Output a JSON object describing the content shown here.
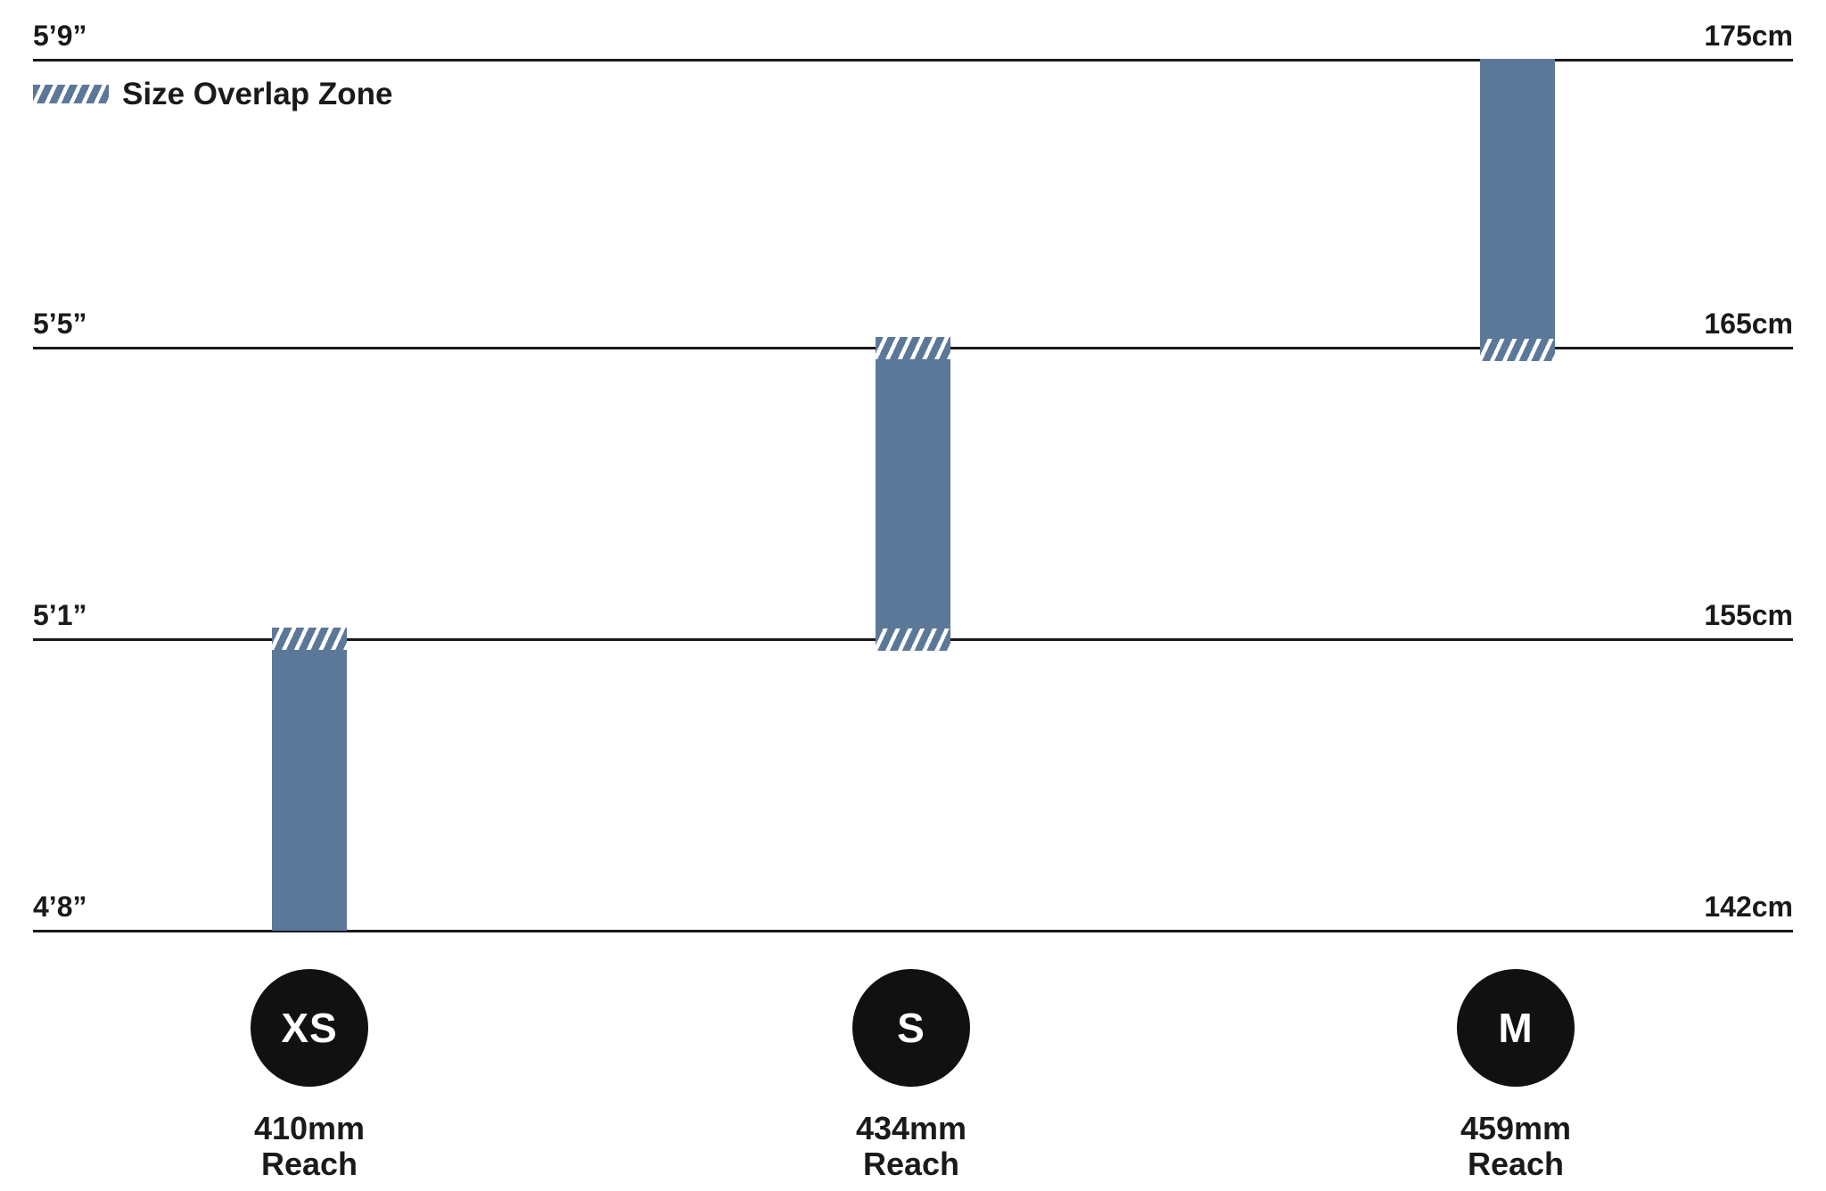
{
  "legend": {
    "label": "Size Overlap Zone"
  },
  "axis": {
    "rows": [
      {
        "imperial": "5’9”",
        "metric": "175cm"
      },
      {
        "imperial": "5’5”",
        "metric": "165cm"
      },
      {
        "imperial": "5’1”",
        "metric": "155cm"
      },
      {
        "imperial": "4’8”",
        "metric": "142cm"
      }
    ]
  },
  "sizes": [
    {
      "code": "XS",
      "reach_value": "410mm",
      "reach_word": "Reach"
    },
    {
      "code": "S",
      "reach_value": "434mm",
      "reach_word": "Reach"
    },
    {
      "code": "M",
      "reach_value": "459mm",
      "reach_word": "Reach"
    }
  ],
  "colors": {
    "bar_blue": "#5c7899",
    "line_black": "#1a1a1a",
    "circle_black": "#111111",
    "text_black": "#1a1a1a"
  },
  "chart_data": {
    "type": "bar",
    "title": "",
    "description": "Bike frame size guide showing rider height ranges per frame size with hatched size-overlap zones",
    "categories": [
      "XS",
      "S",
      "M"
    ],
    "series": [
      {
        "name": "XS",
        "height_min_cm": 142,
        "height_max_cm": 155,
        "height_min_imperial": "4’8”",
        "height_max_imperial": "5’1”",
        "reach_mm": 410,
        "overlap_zone_cm": [
          155
        ]
      },
      {
        "name": "S",
        "height_min_cm": 155,
        "height_max_cm": 165,
        "height_min_imperial": "5’1”",
        "height_max_imperial": "5’5”",
        "reach_mm": 434,
        "overlap_zone_cm": [
          155,
          165
        ]
      },
      {
        "name": "M",
        "height_min_cm": 165,
        "height_max_cm": 175,
        "height_min_imperial": "5’5”",
        "height_max_imperial": "5’9”",
        "reach_mm": 459,
        "overlap_zone_cm": [
          165
        ]
      }
    ],
    "y_axis": {
      "left_tick_labels": [
        "5’9”",
        "5’5”",
        "5’1”",
        "4’8”"
      ],
      "right_tick_labels": [
        "175cm",
        "165cm",
        "155cm",
        "142cm"
      ],
      "tick_values_cm": [
        175,
        165,
        155,
        142
      ],
      "ylim_cm": [
        142,
        175
      ]
    },
    "legend": [
      "Size Overlap Zone"
    ],
    "legend_position": "top-left",
    "grid": true,
    "bar_orientation": "vertical"
  }
}
